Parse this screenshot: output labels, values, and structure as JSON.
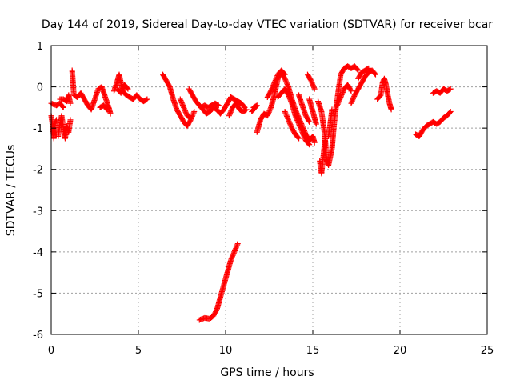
{
  "chart_data": {
    "type": "scatter",
    "title": "Day 144 of 2019, Sidereal Day-to-day VTEC variation (SDTVAR) for receiver bcar",
    "xlabel": "GPS time / hours",
    "ylabel": "SDTVAR / TECUs",
    "xlim": [
      0,
      25
    ],
    "ylim": [
      -6,
      1
    ],
    "xticks": [
      "0",
      "5",
      "10",
      "15",
      "20",
      "25"
    ],
    "yticks": [
      "-6",
      "-5",
      "-4",
      "-3",
      "-2",
      "-1",
      "0",
      "1"
    ],
    "grid": true,
    "marker": "+",
    "color": "#ff0000",
    "series": [
      {
        "name": "SDTVAR",
        "segments": [
          [
            [
              0.0,
              -0.7
            ],
            [
              0.1,
              -1.0
            ],
            [
              0.15,
              -1.25
            ],
            [
              0.2,
              -0.9
            ],
            [
              0.3,
              -0.8
            ]
          ],
          [
            [
              0.0,
              -0.4
            ],
            [
              0.3,
              -0.45
            ],
            [
              0.5,
              -0.4
            ],
            [
              0.7,
              -0.5
            ]
          ],
          [
            [
              0.4,
              -1.2
            ],
            [
              0.5,
              -0.9
            ],
            [
              0.6,
              -0.7
            ],
            [
              0.7,
              -1.0
            ],
            [
              0.8,
              -1.25
            ],
            [
              0.9,
              -0.95
            ],
            [
              1.0,
              -1.1
            ],
            [
              1.1,
              -0.8
            ]
          ],
          [
            [
              0.5,
              -0.3
            ],
            [
              0.7,
              -0.3
            ],
            [
              0.9,
              -0.35
            ],
            [
              1.0,
              -0.2
            ],
            [
              1.1,
              -0.4
            ]
          ],
          [
            [
              1.2,
              0.4
            ],
            [
              1.25,
              0.1
            ],
            [
              1.3,
              -0.2
            ],
            [
              1.5,
              -0.25
            ],
            [
              1.7,
              -0.15
            ],
            [
              1.9,
              -0.3
            ],
            [
              2.1,
              -0.45
            ],
            [
              2.3,
              -0.55
            ],
            [
              2.5,
              -0.3
            ],
            [
              2.7,
              -0.05
            ],
            [
              2.9,
              0.0
            ],
            [
              3.1,
              -0.25
            ],
            [
              3.3,
              -0.5
            ],
            [
              3.4,
              -0.65
            ]
          ],
          [
            [
              2.8,
              -0.5
            ],
            [
              3.0,
              -0.45
            ],
            [
              3.2,
              -0.55
            ]
          ],
          [
            [
              3.6,
              -0.1
            ],
            [
              3.8,
              0.15
            ],
            [
              3.9,
              0.3
            ],
            [
              4.0,
              0.1
            ],
            [
              4.1,
              -0.1
            ],
            [
              4.3,
              -0.2
            ],
            [
              4.5,
              -0.25
            ],
            [
              4.7,
              -0.3
            ],
            [
              4.9,
              -0.2
            ],
            [
              5.1,
              -0.3
            ],
            [
              5.3,
              -0.35
            ],
            [
              5.5,
              -0.3
            ]
          ],
          [
            [
              3.8,
              -0.05
            ],
            [
              4.0,
              -0.15
            ],
            [
              4.2,
              0.05
            ],
            [
              4.4,
              -0.05
            ]
          ],
          [
            [
              6.4,
              0.3
            ],
            [
              6.6,
              0.15
            ],
            [
              6.8,
              0.0
            ],
            [
              7.0,
              -0.3
            ],
            [
              7.2,
              -0.55
            ],
            [
              7.4,
              -0.7
            ],
            [
              7.6,
              -0.85
            ],
            [
              7.8,
              -0.95
            ],
            [
              8.0,
              -0.8
            ],
            [
              8.2,
              -0.6
            ]
          ],
          [
            [
              7.4,
              -0.3
            ],
            [
              7.6,
              -0.5
            ],
            [
              7.8,
              -0.7
            ],
            [
              8.0,
              -0.75
            ]
          ],
          [
            [
              7.9,
              -0.05
            ],
            [
              8.1,
              -0.2
            ],
            [
              8.3,
              -0.35
            ],
            [
              8.5,
              -0.45
            ],
            [
              8.7,
              -0.55
            ],
            [
              8.9,
              -0.65
            ],
            [
              9.1,
              -0.6
            ],
            [
              9.3,
              -0.5
            ],
            [
              9.5,
              -0.55
            ],
            [
              9.7,
              -0.65
            ],
            [
              9.9,
              -0.55
            ],
            [
              10.1,
              -0.4
            ],
            [
              10.3,
              -0.25
            ],
            [
              10.5,
              -0.3
            ],
            [
              10.7,
              -0.35
            ],
            [
              10.9,
              -0.4
            ],
            [
              11.1,
              -0.5
            ]
          ],
          [
            [
              8.6,
              -0.5
            ],
            [
              8.8,
              -0.45
            ],
            [
              9.0,
              -0.5
            ],
            [
              9.2,
              -0.45
            ],
            [
              9.4,
              -0.4
            ],
            [
              9.6,
              -0.45
            ]
          ],
          [
            [
              10.2,
              -0.7
            ],
            [
              10.4,
              -0.5
            ],
            [
              10.6,
              -0.4
            ],
            [
              10.8,
              -0.55
            ],
            [
              11.0,
              -0.6
            ],
            [
              11.2,
              -0.55
            ]
          ],
          [
            [
              11.6,
              -0.5
            ],
            [
              11.8,
              -0.45
            ],
            [
              11.5,
              -0.6
            ]
          ],
          [
            [
              8.5,
              -5.65
            ],
            [
              8.8,
              -5.6
            ],
            [
              9.1,
              -5.62
            ],
            [
              9.3,
              -5.55
            ],
            [
              9.5,
              -5.4
            ],
            [
              9.7,
              -5.1
            ],
            [
              9.9,
              -4.8
            ],
            [
              10.1,
              -4.5
            ],
            [
              10.3,
              -4.2
            ],
            [
              10.5,
              -4.0
            ],
            [
              10.7,
              -3.8
            ]
          ],
          [
            [
              11.8,
              -1.1
            ],
            [
              12.0,
              -0.8
            ],
            [
              12.2,
              -0.65
            ],
            [
              12.4,
              -0.7
            ],
            [
              12.6,
              -0.5
            ],
            [
              12.8,
              -0.2
            ],
            [
              13.0,
              0.2
            ],
            [
              13.2,
              0.35
            ],
            [
              13.4,
              0.2
            ],
            [
              13.6,
              0.0
            ],
            [
              13.8,
              -0.3
            ],
            [
              14.0,
              -0.55
            ],
            [
              14.2,
              -0.75
            ],
            [
              14.4,
              -0.95
            ],
            [
              14.6,
              -1.15
            ],
            [
              14.8,
              -1.3
            ],
            [
              15.0,
              -1.2
            ],
            [
              15.1,
              -1.35
            ]
          ],
          [
            [
              12.4,
              -0.25
            ],
            [
              12.6,
              -0.1
            ],
            [
              12.8,
              0.1
            ],
            [
              13.0,
              0.3
            ],
            [
              13.2,
              0.4
            ],
            [
              13.4,
              0.3
            ]
          ],
          [
            [
              13.0,
              -0.25
            ],
            [
              13.2,
              -0.15
            ],
            [
              13.4,
              -0.05
            ],
            [
              13.6,
              -0.2
            ],
            [
              13.8,
              -0.4
            ],
            [
              14.0,
              -0.7
            ],
            [
              14.2,
              -0.9
            ],
            [
              14.4,
              -1.1
            ],
            [
              14.6,
              -1.3
            ],
            [
              14.8,
              -1.4
            ]
          ],
          [
            [
              13.4,
              -0.6
            ],
            [
              13.6,
              -0.8
            ],
            [
              13.8,
              -1.0
            ],
            [
              14.0,
              -1.15
            ],
            [
              14.2,
              -1.25
            ]
          ],
          [
            [
              14.2,
              -0.2
            ],
            [
              14.4,
              -0.45
            ],
            [
              14.6,
              -0.7
            ],
            [
              14.8,
              -0.85
            ]
          ],
          [
            [
              14.8,
              -0.3
            ],
            [
              15.0,
              -0.6
            ],
            [
              15.2,
              -0.9
            ]
          ],
          [
            [
              14.7,
              0.3
            ],
            [
              14.9,
              0.15
            ],
            [
              15.1,
              -0.05
            ]
          ],
          [
            [
              15.3,
              -0.35
            ],
            [
              15.5,
              -0.6
            ],
            [
              15.6,
              -0.9
            ],
            [
              15.7,
              -1.2
            ],
            [
              15.75,
              -1.5
            ],
            [
              15.8,
              -1.8
            ],
            [
              15.9,
              -1.9
            ],
            [
              16.0,
              -1.7
            ],
            [
              16.1,
              -1.5
            ],
            [
              16.2,
              -1.0
            ],
            [
              16.3,
              -0.6
            ],
            [
              16.4,
              -0.3
            ],
            [
              16.5,
              0.0
            ],
            [
              16.6,
              0.3
            ],
            [
              16.8,
              0.45
            ],
            [
              17.0,
              0.5
            ],
            [
              17.2,
              0.45
            ],
            [
              17.4,
              0.5
            ],
            [
              17.6,
              0.4
            ]
          ],
          [
            [
              15.4,
              -1.8
            ],
            [
              15.5,
              -2.1
            ],
            [
              15.6,
              -1.7
            ],
            [
              15.7,
              -1.3
            ]
          ],
          [
            [
              15.9,
              -1.2
            ],
            [
              16.0,
              -0.9
            ],
            [
              16.1,
              -0.55
            ]
          ],
          [
            [
              16.4,
              -0.45
            ],
            [
              16.6,
              -0.25
            ],
            [
              16.8,
              -0.05
            ],
            [
              17.0,
              0.05
            ],
            [
              17.2,
              -0.1
            ]
          ],
          [
            [
              17.2,
              -0.4
            ],
            [
              17.4,
              -0.2
            ],
            [
              17.6,
              -0.05
            ],
            [
              17.8,
              0.1
            ],
            [
              18.0,
              0.25
            ],
            [
              18.2,
              0.35
            ],
            [
              18.4,
              0.4
            ],
            [
              18.6,
              0.3
            ]
          ],
          [
            [
              17.6,
              0.2
            ],
            [
              17.8,
              0.35
            ],
            [
              18.0,
              0.4
            ],
            [
              18.2,
              0.45
            ]
          ],
          [
            [
              18.7,
              -0.3
            ],
            [
              18.9,
              -0.2
            ],
            [
              19.0,
              0.1
            ],
            [
              19.1,
              0.2
            ],
            [
              19.2,
              0.05
            ],
            [
              19.3,
              -0.2
            ],
            [
              19.4,
              -0.4
            ],
            [
              19.5,
              -0.55
            ]
          ],
          [
            [
              20.9,
              -1.15
            ],
            [
              21.1,
              -1.2
            ],
            [
              21.3,
              -1.05
            ],
            [
              21.5,
              -0.95
            ],
            [
              21.7,
              -0.9
            ],
            [
              21.9,
              -0.85
            ],
            [
              22.1,
              -0.9
            ],
            [
              22.3,
              -0.85
            ],
            [
              22.5,
              -0.75
            ],
            [
              22.7,
              -0.7
            ],
            [
              22.9,
              -0.6
            ]
          ],
          [
            [
              21.9,
              -0.15
            ],
            [
              22.1,
              -0.1
            ],
            [
              22.3,
              -0.15
            ],
            [
              22.5,
              -0.05
            ],
            [
              22.7,
              -0.1
            ],
            [
              22.9,
              -0.05
            ]
          ]
        ]
      }
    ]
  }
}
